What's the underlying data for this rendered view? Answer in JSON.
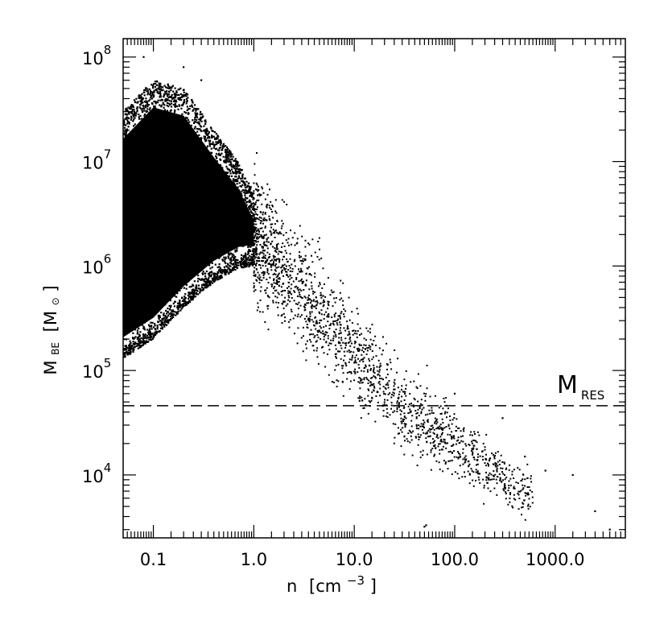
{
  "chart_data": {
    "type": "scatter",
    "title": "",
    "x_axis": {
      "label_base": "n",
      "label_unit_open": "[cm",
      "label_unit_exp": "−3",
      "label_unit_close": "]",
      "scale": "log",
      "range": [
        0.05,
        5000
      ],
      "tick_labels": [
        {
          "value": 0.1,
          "text": "0.1"
        },
        {
          "value": 1,
          "text": "1.0"
        },
        {
          "value": 10,
          "text": "10.0"
        },
        {
          "value": 100,
          "text": "100.0"
        },
        {
          "value": 1000,
          "text": "1000.0"
        }
      ]
    },
    "y_axis": {
      "label_base": "M",
      "label_sub": "BE",
      "label_unit_open": "[M",
      "label_unit_sub": "⊙",
      "label_unit_close": "]",
      "scale": "log",
      "range": [
        2500,
        150000000
      ],
      "tick_labels": [
        {
          "value": 10000,
          "base": "10",
          "exp": "4"
        },
        {
          "value": 100000,
          "base": "10",
          "exp": "5"
        },
        {
          "value": 1000000,
          "base": "10",
          "exp": "6"
        },
        {
          "value": 10000000,
          "base": "10",
          "exp": "7"
        },
        {
          "value": 100000000,
          "base": "10",
          "exp": "8"
        }
      ]
    },
    "reference_line": {
      "style": "dashed",
      "y": 46000,
      "label_main": "M",
      "label_sub": "RES"
    },
    "series": [
      {
        "description_points": "dense cloud of cells; envelope approximated",
        "dense_region": {
          "x_range": [
            0.05,
            1.0
          ],
          "lower_envelope": [
            [
              0.05,
              130000
            ],
            [
              0.1,
              200000
            ],
            [
              0.2,
              400000
            ],
            [
              0.4,
              700000
            ],
            [
              0.7,
              950000
            ],
            [
              1.0,
              1000000
            ]
          ],
          "upper_envelope": [
            [
              0.05,
              30000000
            ],
            [
              0.1,
              60000000
            ],
            [
              0.2,
              50000000
            ],
            [
              0.4,
              20000000
            ],
            [
              0.7,
              10000000
            ],
            [
              1.0,
              5000000
            ]
          ]
        },
        "tail": {
          "x_range": [
            1.0,
            600
          ],
          "center": [
            [
              1,
              2000000
            ],
            [
              3,
              600000
            ],
            [
              10,
              150000
            ],
            [
              30,
              45000
            ],
            [
              100,
              20000
            ],
            [
              300,
              9000
            ],
            [
              600,
              6000
            ]
          ]
        },
        "outliers": [
          [
            0.08,
            100000000
          ],
          [
            0.2,
            80000000
          ],
          [
            0.3,
            60000000
          ],
          [
            50,
            3200
          ],
          [
            52,
            3300
          ],
          [
            100,
            60000
          ],
          [
            300,
            35000
          ],
          [
            500,
            15000
          ],
          [
            800,
            11000
          ],
          [
            1500,
            10000
          ],
          [
            2500,
            4500
          ],
          [
            3500,
            3000
          ]
        ]
      }
    ]
  }
}
